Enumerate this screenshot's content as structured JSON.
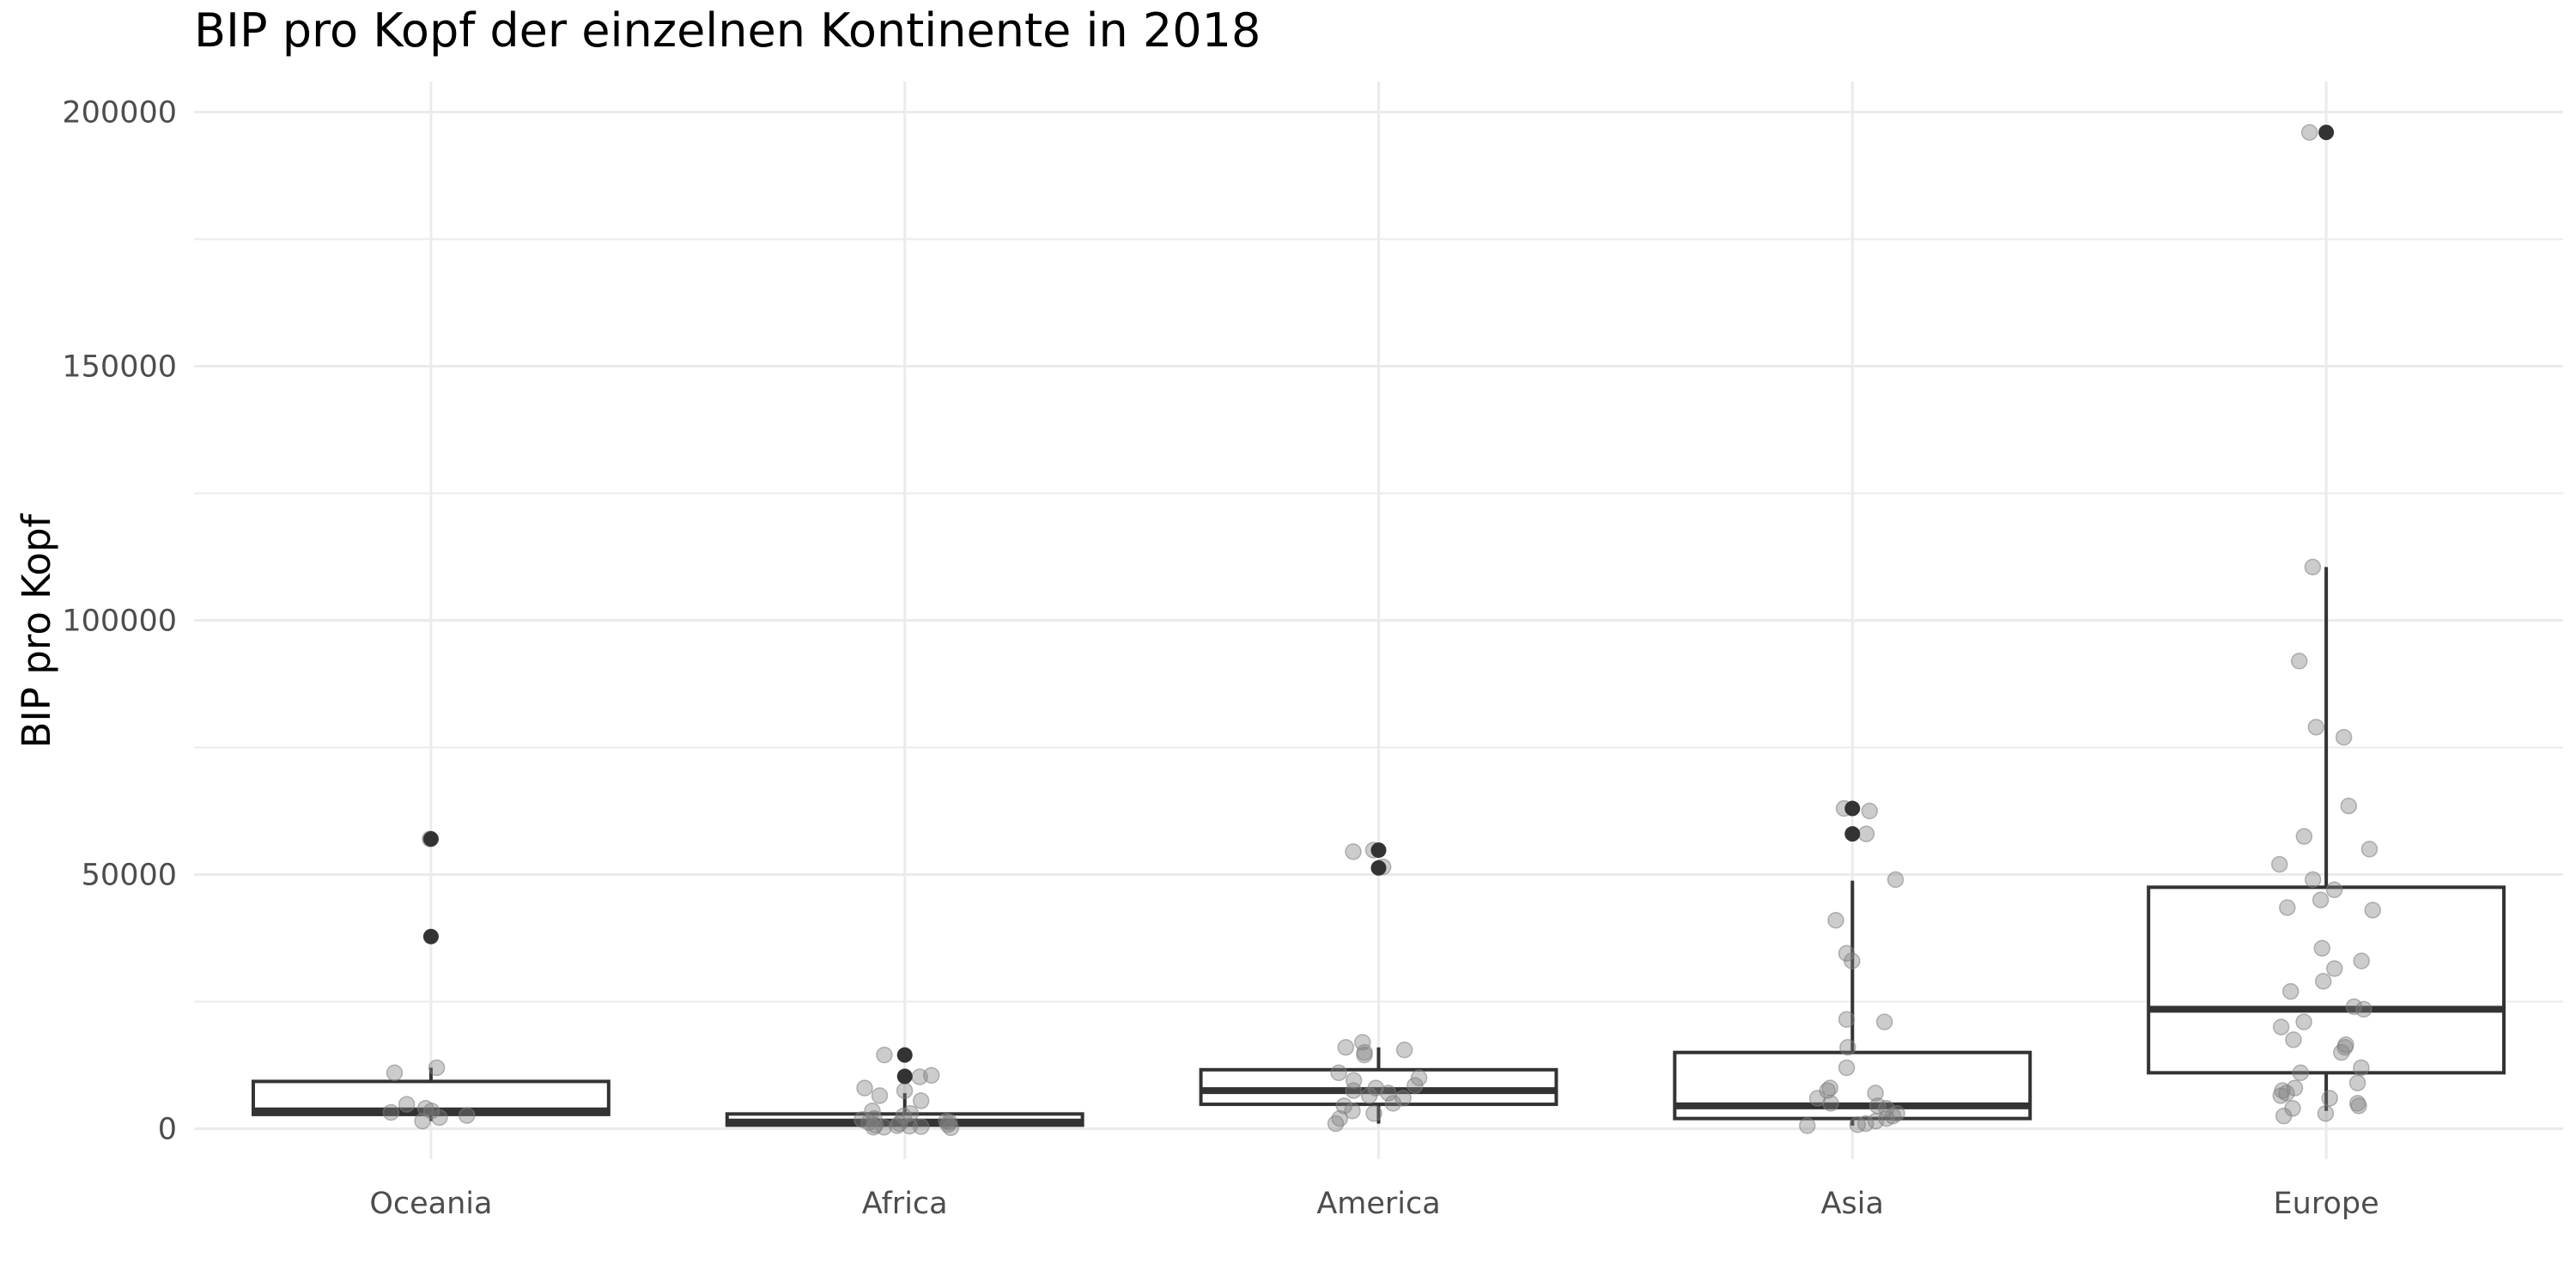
{
  "chart_data": {
    "type": "box",
    "title": "BIP pro Kopf der einzelnen Kontinente in 2018",
    "xlabel": "",
    "ylabel": "BIP pro Kopf",
    "ylim": [
      -6000,
      206000
    ],
    "y_ticks": [
      0,
      50000,
      100000,
      150000,
      200000
    ],
    "y_tick_labels": [
      "0",
      "50000",
      "100000",
      "150000",
      "200000"
    ],
    "grid": true,
    "legend": "none",
    "categories": [
      "Oceania",
      "Africa",
      "America",
      "Asia",
      "Europe"
    ],
    "boxes": [
      {
        "category": "Oceania",
        "q1": 2800,
        "median": 3500,
        "q3": 9300,
        "whisker_low": 1500,
        "whisker_high": 12000,
        "outliers": [
          37800,
          57000
        ]
      },
      {
        "category": "Africa",
        "q1": 700,
        "median": 1300,
        "q3": 2900,
        "whisker_low": 300,
        "whisker_high": 7000,
        "outliers": [
          10300,
          14500
        ]
      },
      {
        "category": "America",
        "q1": 4800,
        "median": 7500,
        "q3": 11600,
        "whisker_low": 1000,
        "whisker_high": 16000,
        "outliers": [
          51300,
          54800
        ]
      },
      {
        "category": "Asia",
        "q1": 2000,
        "median": 4500,
        "q3": 15000,
        "whisker_low": 600,
        "whisker_high": 48800,
        "outliers": [
          58000,
          63000
        ]
      },
      {
        "category": "Europe",
        "q1": 11000,
        "median": 23500,
        "q3": 47500,
        "whisker_low": 3500,
        "whisker_high": 110500,
        "outliers": [
          196000
        ]
      }
    ],
    "points": [
      {
        "category": "Oceania",
        "values": [
          57000,
          12000,
          11000,
          4800,
          4000,
          3500,
          3200,
          2600,
          2200,
          1500
        ]
      },
      {
        "category": "Africa",
        "values": [
          14500,
          10500,
          10200,
          8000,
          7500,
          6500,
          5500,
          3500,
          3000,
          2500,
          2000,
          1800,
          1500,
          1300,
          1200,
          1000,
          800,
          700,
          600,
          500,
          400,
          300,
          300,
          200
        ]
      },
      {
        "category": "America",
        "values": [
          54800,
          54500,
          51500,
          17000,
          16000,
          15500,
          15000,
          14500,
          11000,
          10000,
          9500,
          8500,
          8000,
          7500,
          7000,
          6500,
          6000,
          5000,
          4500,
          3500,
          3000,
          2000,
          1000
        ]
      },
      {
        "category": "Asia",
        "values": [
          63000,
          62500,
          58000,
          49000,
          41000,
          34500,
          33000,
          21500,
          21000,
          16000,
          12000,
          8000,
          7500,
          7000,
          6000,
          5000,
          4500,
          4000,
          3000,
          2500,
          2000,
          1500,
          1000,
          800,
          600
        ]
      },
      {
        "category": "Europe",
        "values": [
          196000,
          110500,
          92000,
          79000,
          77000,
          63500,
          57500,
          55000,
          52000,
          49000,
          47000,
          45000,
          43500,
          43000,
          35500,
          33000,
          31500,
          29000,
          27000,
          24000,
          23500,
          21000,
          20000,
          17500,
          16500,
          16000,
          15000,
          12000,
          11000,
          9000,
          8000,
          7500,
          7000,
          6500,
          6000,
          5000,
          4500,
          4000,
          3000,
          2500
        ]
      }
    ],
    "colors": {
      "box_line": "#333333",
      "outlier": "#333333",
      "jitter_point": "#7f7f7f",
      "grid": "#ebebeb",
      "background": "#ffffff"
    }
  }
}
